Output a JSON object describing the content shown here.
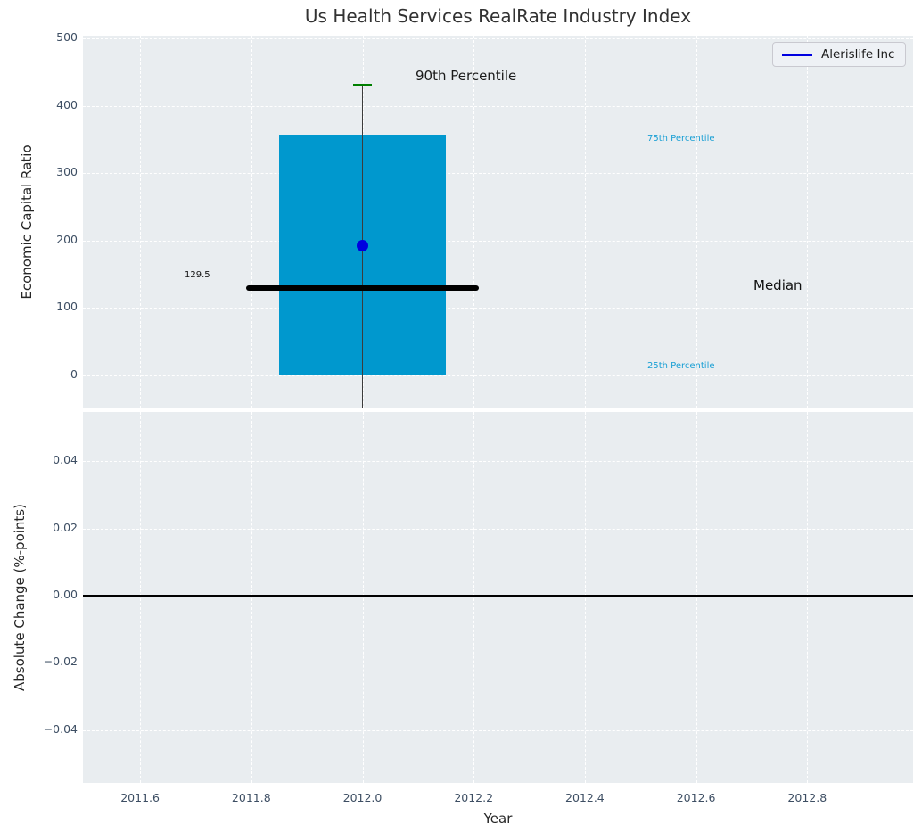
{
  "figure": {
    "colors": {
      "axes_background": "#e9edf0",
      "gridline": "#ffffff",
      "tick_label": "#3d4e63",
      "percentile_label": "#199fd4",
      "box_fill": "#0098ce",
      "cap_green": "#007f00",
      "series_blue": "#0000e0",
      "median_black": "#000000"
    }
  },
  "chart_data": {
    "top": {
      "type": "box",
      "title": "Us Health Services RealRate Industry Index",
      "ylabel": "Economic Capital Ratio",
      "ylim": [
        -50,
        504
      ],
      "xlim": [
        2011.5,
        2012.99
      ],
      "grid": "white dashed on light gray",
      "yticks": [
        {
          "v": 0,
          "label": "0"
        },
        {
          "v": 100,
          "label": "100"
        },
        {
          "v": 200,
          "label": "200"
        },
        {
          "v": 300,
          "label": "300"
        },
        {
          "v": 400,
          "label": "400"
        },
        {
          "v": 500,
          "label": "500"
        }
      ],
      "x_company": 2012.0,
      "box": {
        "x_left": 2011.85,
        "x_right": 2012.15,
        "p25": 0,
        "p75": 357,
        "color": "#0098ce"
      },
      "median_line": {
        "x_left": 2011.79,
        "x_right": 2012.21,
        "value": 129.5,
        "color": "#000000"
      },
      "cap90": {
        "x_left": 2011.983,
        "x_right": 2012.017,
        "value": 431,
        "color": "#007f00"
      },
      "whisker": {
        "x": 2012.0,
        "high": 431,
        "low_note": "extends below axis, cut off at plot edge",
        "color": "#3c3c3c"
      },
      "series": [
        {
          "name": "Alerislife Inc",
          "x": [
            2012.0
          ],
          "y": [
            192
          ],
          "color": "#0000e0",
          "marker": "circle"
        }
      ],
      "legend_entries": [
        {
          "label": "Alerislife Inc",
          "color": "#0000e0",
          "position": "upper right"
        }
      ],
      "labels": {
        "p90": "90th Percentile",
        "p75": "75th Percentile",
        "p25": "25th Percentile",
        "median": "Median",
        "median_value": "129.5"
      }
    },
    "bottom": {
      "type": "line",
      "ylabel": "Absolute Change (%-points)",
      "xlabel": "Year",
      "ylim": [
        -0.0557,
        0.0546
      ],
      "xlim": [
        2011.5,
        2012.99
      ],
      "grid": "white dashed on light gray",
      "zero_line": 0,
      "yticks": [
        {
          "v": 0.04,
          "label": "0.04"
        },
        {
          "v": 0.02,
          "label": "0.02"
        },
        {
          "v": 0,
          "label": "0.00"
        },
        {
          "v": -0.02,
          "label": "−0.02"
        },
        {
          "v": -0.04,
          "label": "−0.04"
        }
      ],
      "xticks": [
        {
          "v": 2011.6,
          "label": "2011.6"
        },
        {
          "v": 2011.8,
          "label": "2011.8"
        },
        {
          "v": 2012.0,
          "label": "2012.0"
        },
        {
          "v": 2012.2,
          "label": "2012.2"
        },
        {
          "v": 2012.4,
          "label": "2012.4"
        },
        {
          "v": 2012.6,
          "label": "2012.6"
        },
        {
          "v": 2012.8,
          "label": "2012.8"
        }
      ],
      "values": []
    }
  }
}
